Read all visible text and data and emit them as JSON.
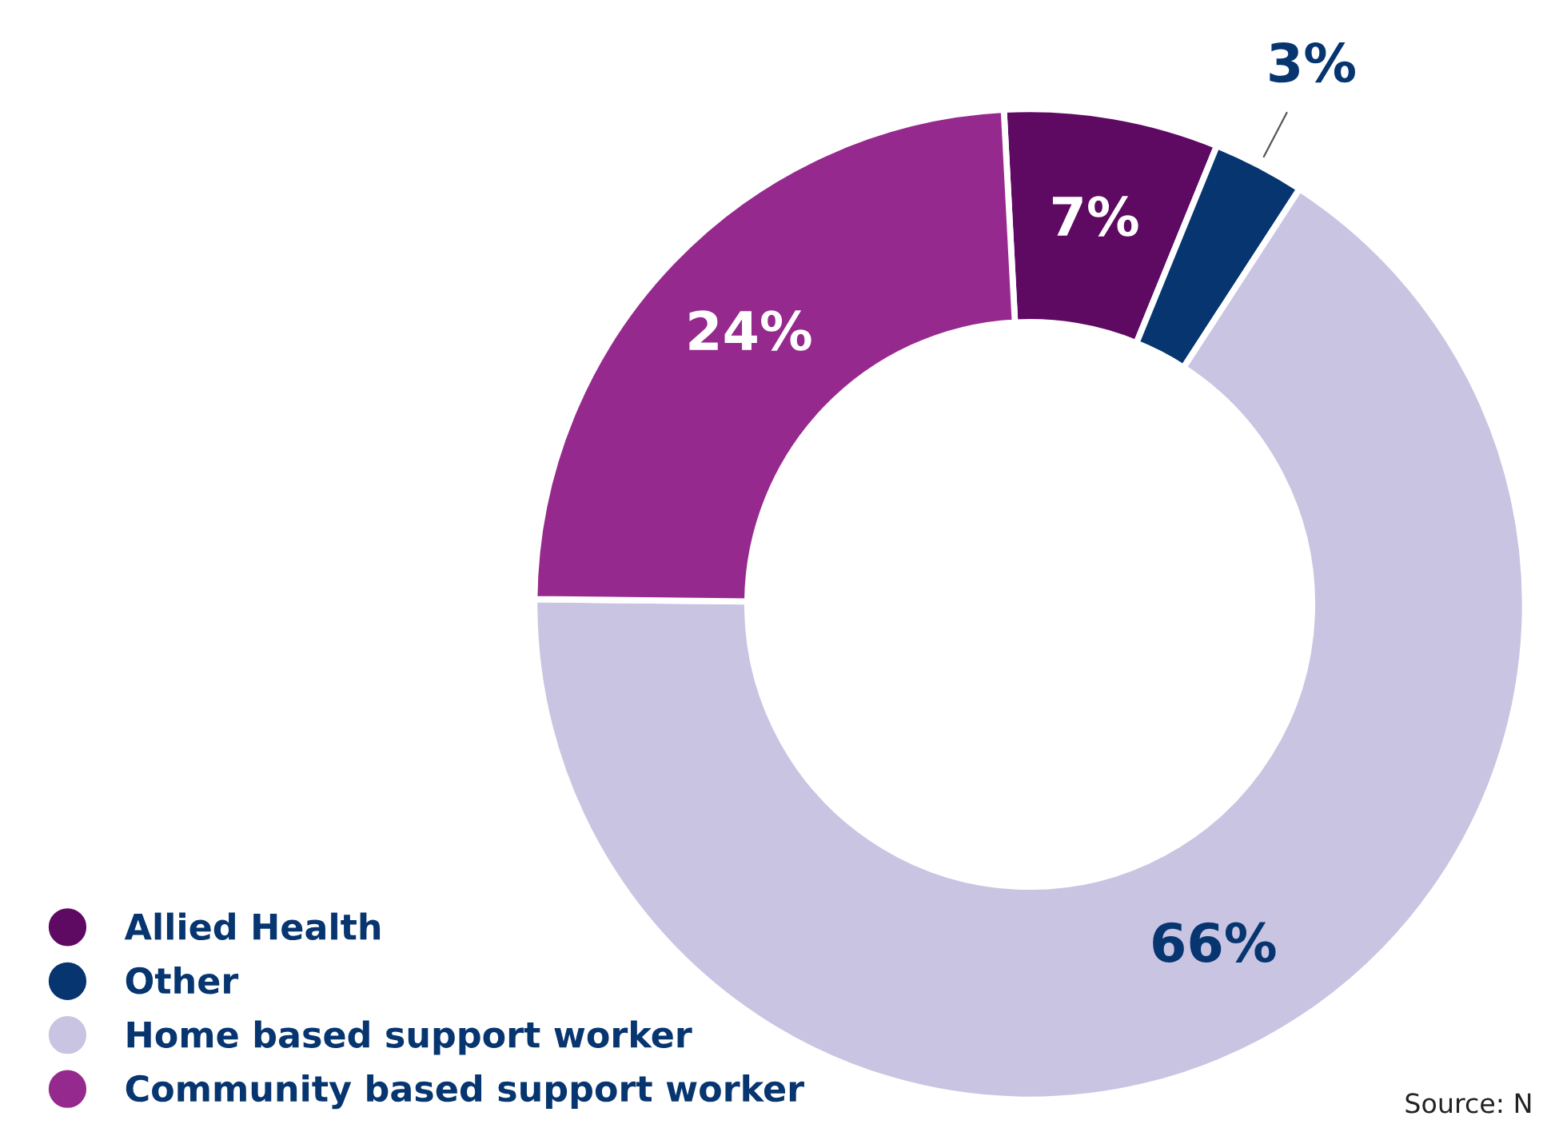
{
  "chart_data": {
    "type": "donut",
    "categories": [
      "Allied Health",
      "Other",
      "Home based support worker",
      "Community based support worker"
    ],
    "values": [
      7,
      3,
      66,
      24
    ],
    "colors": [
      "#5e0a62",
      "#063570",
      "#c9c4e2",
      "#96298d"
    ],
    "value_labels": [
      "7%",
      "3%",
      "66%",
      "24%"
    ],
    "legend": "bottom left",
    "annotations": [
      "Source: N"
    ]
  }
}
